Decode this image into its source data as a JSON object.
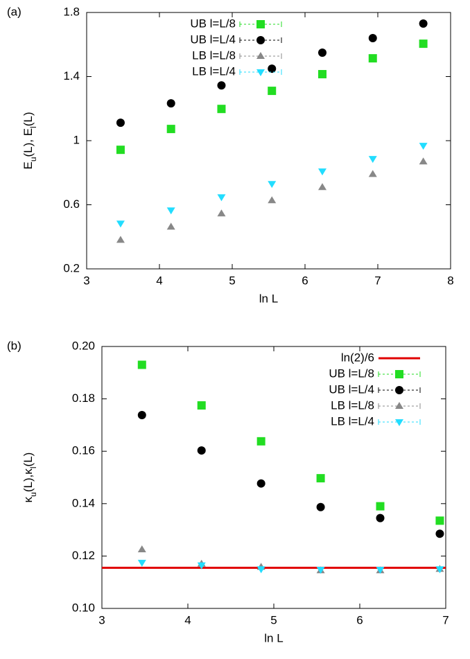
{
  "chart_data": [
    {
      "type": "scatter",
      "panel_label": "(a)",
      "x_label": "ln L",
      "y_label": [
        {
          "text": "E"
        },
        {
          "text": "u",
          "sub": true
        },
        {
          "text": "(L), E"
        },
        {
          "text": "l",
          "sub": true
        },
        {
          "text": "(L)"
        }
      ],
      "xlim": [
        3,
        8
      ],
      "xticks": [
        3,
        4,
        5,
        6,
        7,
        8
      ],
      "ylim": [
        0.2,
        1.8
      ],
      "yticks": [
        0.2,
        0.6,
        1,
        1.4,
        1.8
      ],
      "legend": "top-left",
      "x": [
        3.466,
        4.159,
        4.852,
        5.545,
        6.238,
        6.931,
        7.625
      ],
      "series": [
        {
          "name": "UB l=L/8",
          "color": "#22dd22",
          "marker": "square",
          "values": [
            0.943,
            1.073,
            1.198,
            1.311,
            1.415,
            1.514,
            1.605
          ]
        },
        {
          "name": "UB l=L/4",
          "color": "#000000",
          "marker": "circle",
          "values": [
            1.112,
            1.233,
            1.345,
            1.449,
            1.549,
            1.64,
            1.731
          ]
        },
        {
          "name": "LB l=L/8",
          "color": "#888888",
          "marker": "triangle-up",
          "values": [
            0.38,
            0.462,
            0.545,
            0.627,
            0.709,
            0.791,
            0.869
          ]
        },
        {
          "name": "LB l=L/4",
          "color": "#22ddff",
          "marker": "triangle-down",
          "values": [
            0.484,
            0.566,
            0.648,
            0.731,
            0.809,
            0.887,
            0.969
          ]
        }
      ]
    },
    {
      "type": "scatter",
      "panel_label": "(b)",
      "x_label": "ln L",
      "y_label": [
        {
          "text": "κ"
        },
        {
          "text": "u",
          "sub": true
        },
        {
          "text": "(L),κ"
        },
        {
          "text": "l",
          "sub": true
        },
        {
          "text": "(L)"
        }
      ],
      "xlim": [
        3,
        7
      ],
      "xticks": [
        3,
        4,
        5,
        6,
        7
      ],
      "ylim": [
        0.1,
        0.2
      ],
      "yticks": [
        {
          "value": 0.1,
          "label": "0.10"
        },
        {
          "value": 0.12,
          "label": "0.12"
        },
        {
          "value": 0.14,
          "label": "0.14"
        },
        {
          "value": 0.16,
          "label": "0.16"
        },
        {
          "value": 0.18,
          "label": "0.18"
        },
        {
          "value": 0.2,
          "label": "0.20"
        }
      ],
      "legend": "top-right",
      "x": [
        3.466,
        4.159,
        4.852,
        5.545,
        6.238,
        6.931
      ],
      "series": [
        {
          "name": "ln(2)/6",
          "color": "#e00000",
          "marker": "hline",
          "y": 0.1155
        },
        {
          "name": "UB l=L/8",
          "color": "#22dd22",
          "marker": "square",
          "values": [
            0.193,
            0.1775,
            0.1638,
            0.1497,
            0.139,
            0.1335
          ]
        },
        {
          "name": "UB l=L/4",
          "color": "#000000",
          "marker": "circle",
          "values": [
            0.1738,
            0.1603,
            0.1477,
            0.1387,
            0.1345,
            0.1285
          ]
        },
        {
          "name": "LB l=L/8",
          "color": "#888888",
          "marker": "triangle-up",
          "values": [
            0.1225,
            0.117,
            0.1158,
            0.1145,
            0.1145,
            0.115
          ]
        },
        {
          "name": "LB l=L/4",
          "color": "#22ddff",
          "marker": "triangle-down",
          "values": [
            0.1175,
            0.1165,
            0.115,
            0.1148,
            0.1148,
            0.115
          ]
        }
      ]
    }
  ]
}
